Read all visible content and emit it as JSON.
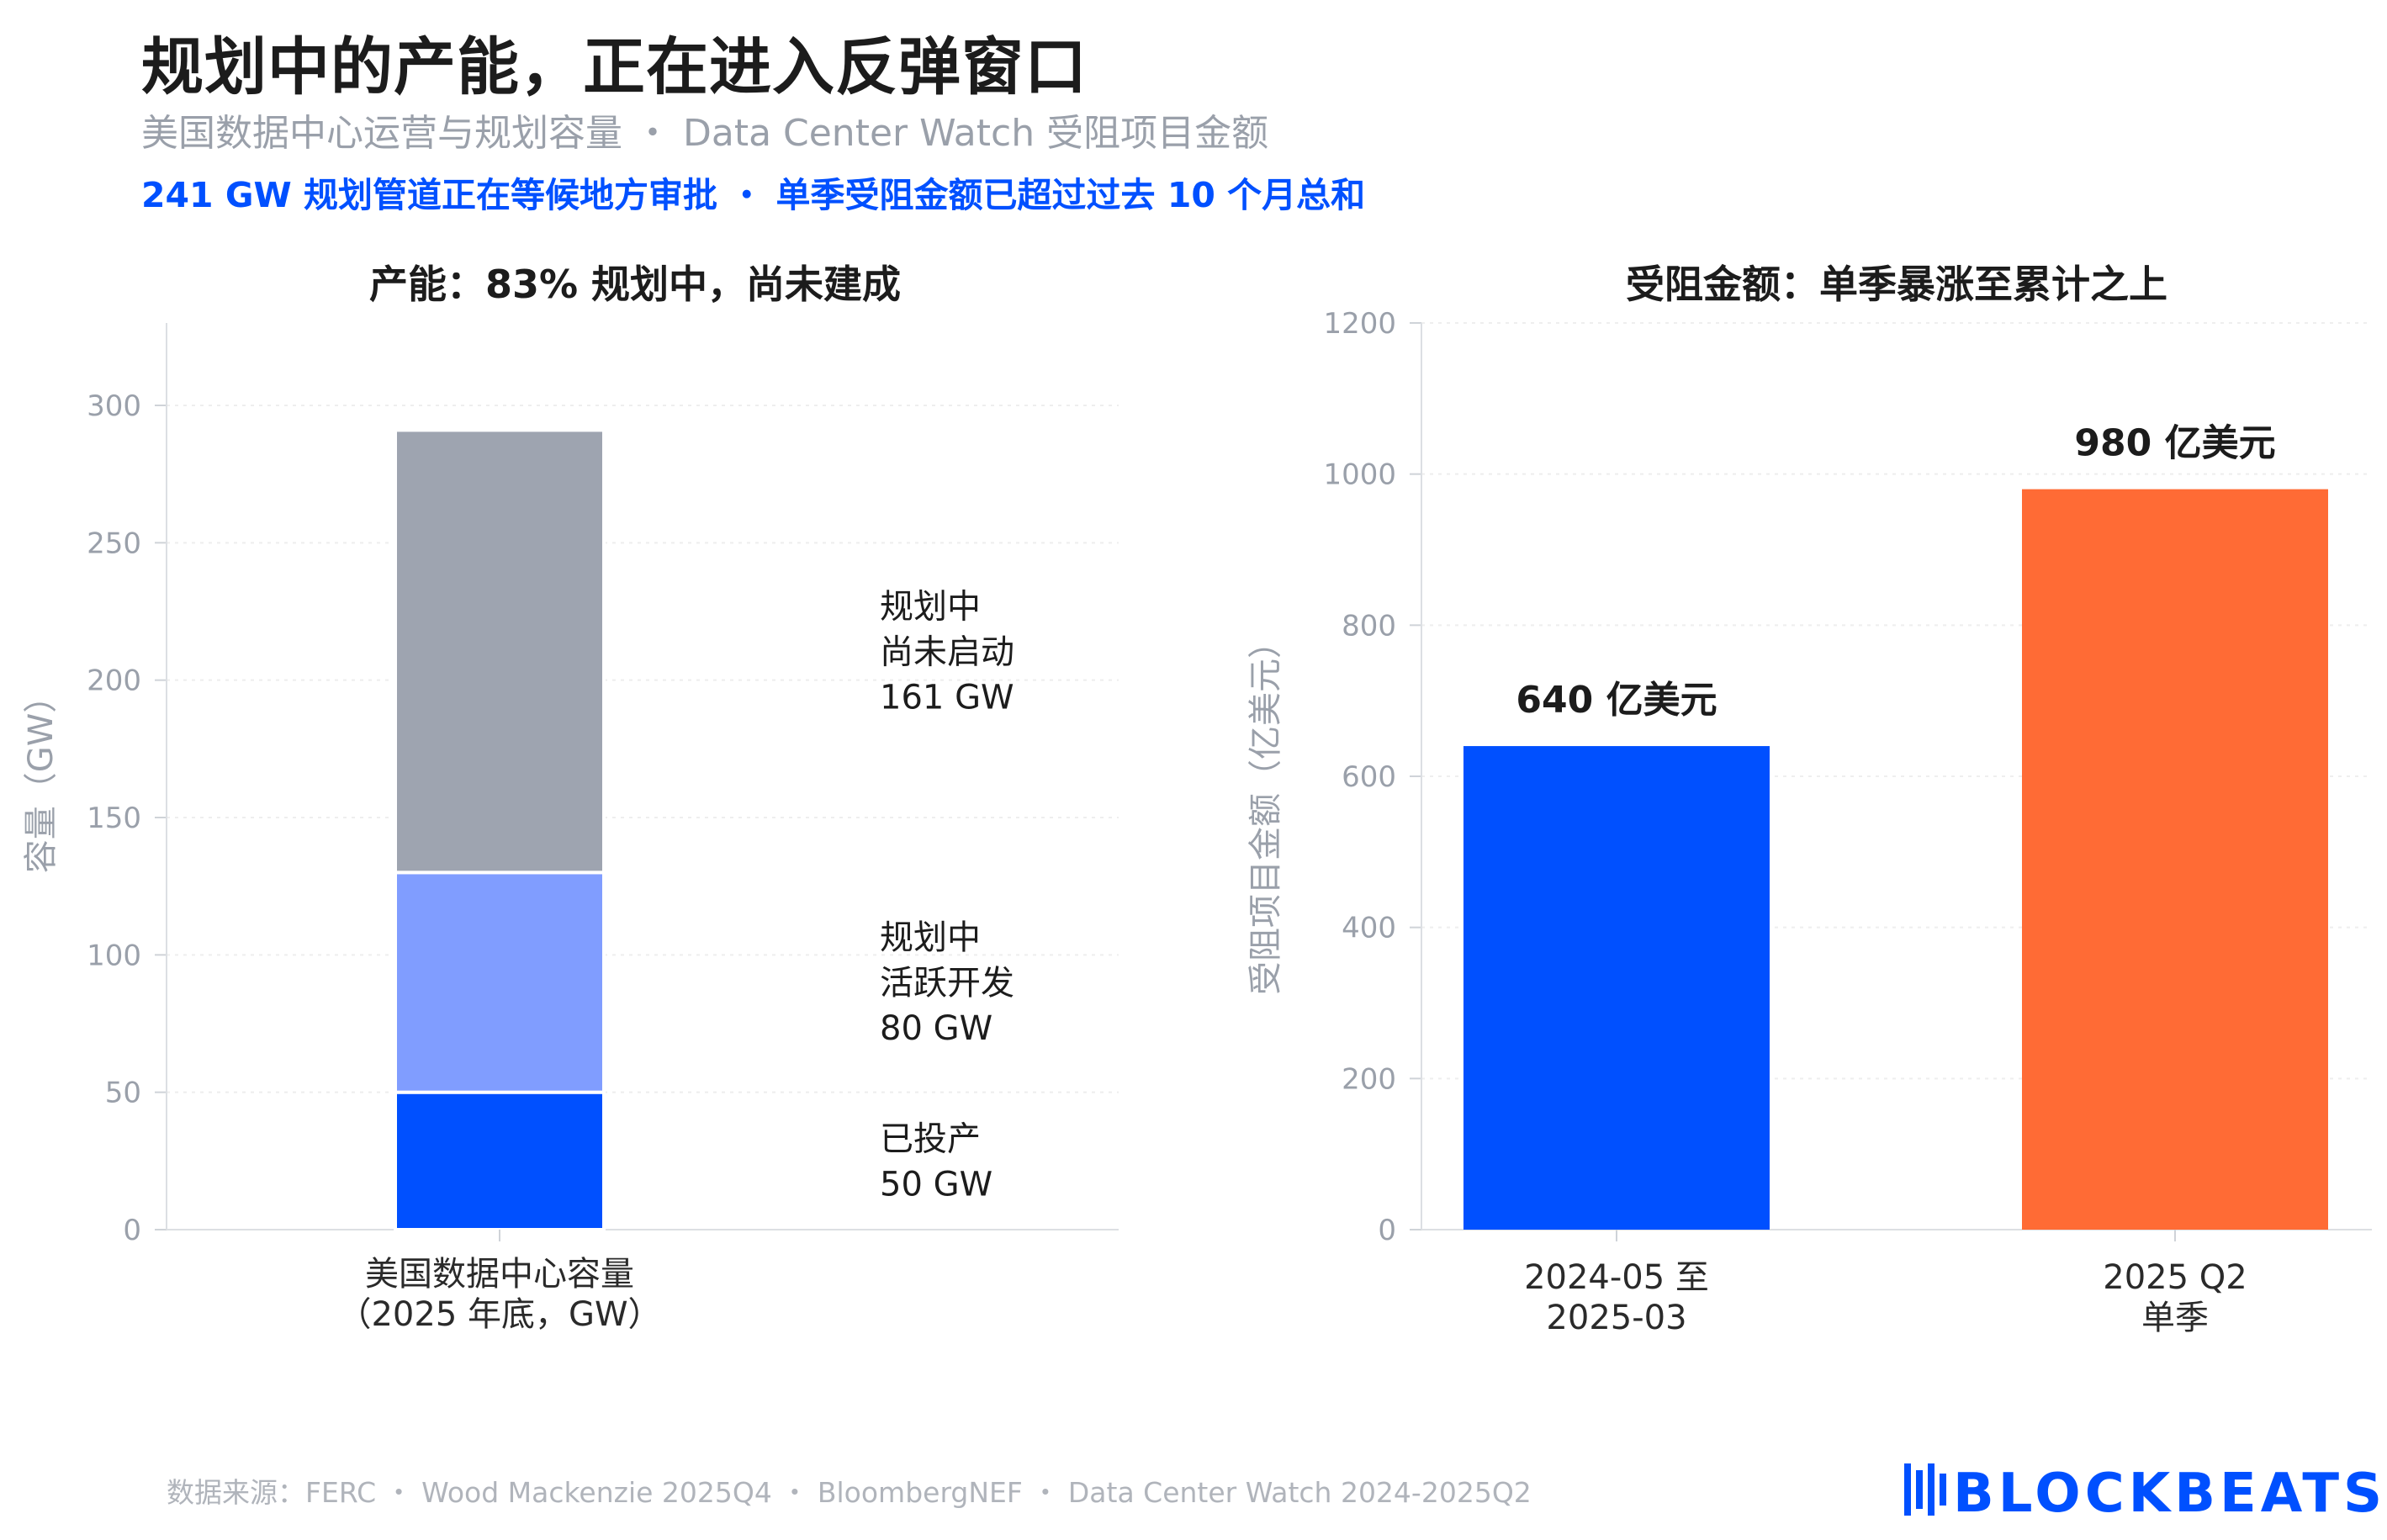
{
  "header": {
    "title": "规划中的产能，正在进入反弹窗口",
    "subtitle": "美国数据中心运营与规划容量 ・ Data Center Watch 受阻项目金额",
    "highlight": "241 GW 规划管道正在等候地方审批 ・ 单季受阻金额已超过过去 10 个月总和"
  },
  "chart_data": [
    {
      "type": "bar",
      "stacked": true,
      "title": "产能：83% 规划中，尚未建成",
      "ylabel": "容量（GW）",
      "ylim": [
        0,
        330
      ],
      "yticks": [
        "0",
        "50",
        "100",
        "150",
        "200",
        "250",
        "300"
      ],
      "grid": true,
      "categories": [
        [
          "美国数据中心容量",
          "（2025 年底，GW）"
        ]
      ],
      "series": [
        {
          "name": "已投产",
          "value": 50,
          "label": [
            "已投产",
            "50 GW"
          ],
          "color": "#0050ff"
        },
        {
          "name": "规划中活跃开发",
          "value": 80,
          "label": [
            "规划中",
            "活跃开发",
            "80 GW"
          ],
          "color": "#809dff"
        },
        {
          "name": "规划中尚未启动",
          "value": 161,
          "label": [
            "规划中",
            "尚未启动",
            "161 GW"
          ],
          "color": "#9ea4b0"
        }
      ]
    },
    {
      "type": "bar",
      "title": "受阻金额：单季暴涨至累计之上",
      "ylabel": "受阻项目金额（亿美元）",
      "ylim": [
        0,
        1200
      ],
      "yticks": [
        "0",
        "200",
        "400",
        "600",
        "800",
        "1000",
        "1200"
      ],
      "grid": true,
      "categories": [
        [
          "2024-05 至",
          "2025-03"
        ],
        [
          "2025 Q2",
          "单季"
        ]
      ],
      "values": [
        640,
        980
      ],
      "data_labels": [
        "640 亿美元",
        "980 亿美元"
      ],
      "colors": [
        "#0050ff",
        "#ff6b35"
      ]
    }
  ],
  "footer": {
    "source": "数据来源：FERC ・ Wood Mackenzie 2025Q4 ・ BloombergNEF ・ Data Center Watch 2024-2025Q2",
    "logo_text": "BLOCKBEATS",
    "logo_icon": "blockbeats-logo-icon"
  }
}
